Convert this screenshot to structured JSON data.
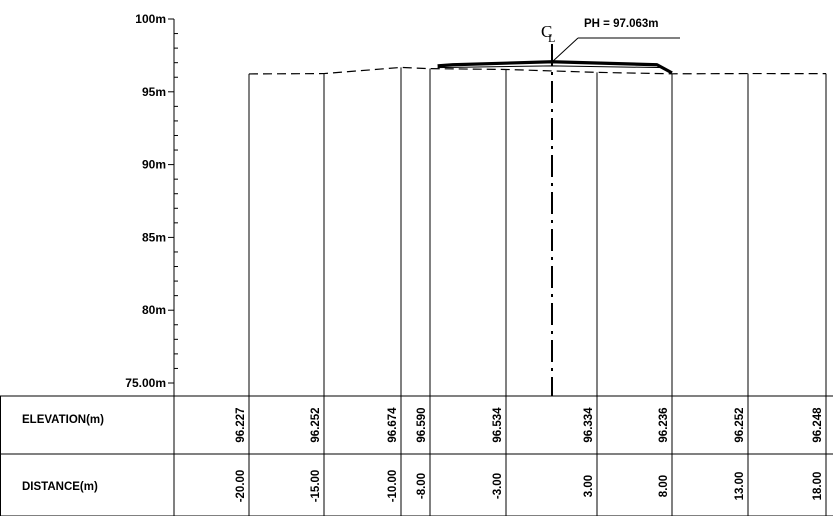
{
  "y_axis": {
    "ticks": [
      {
        "value": 100,
        "label": "100m"
      },
      {
        "value": 95,
        "label": "95m"
      },
      {
        "value": 90,
        "label": "90m"
      },
      {
        "value": 85,
        "label": "85m"
      },
      {
        "value": 80,
        "label": "80m"
      },
      {
        "value": 75,
        "label": "75.00m"
      }
    ]
  },
  "table": {
    "elevation_label": "ELEVATION(m)",
    "distance_label": "DISTANCE(m)"
  },
  "stations": [
    {
      "offset": -20,
      "distance": "-20.00",
      "elevation": "96.227"
    },
    {
      "offset": -15,
      "distance": "-15.00",
      "elevation": "96.252"
    },
    {
      "offset": -10,
      "distance": "-10.00",
      "elevation": "96.674"
    },
    {
      "offset": -8,
      "distance": "-8.00",
      "elevation": "96.590"
    },
    {
      "offset": -3,
      "distance": "-3.00",
      "elevation": "96.534"
    },
    {
      "offset": 3,
      "distance": "3.00",
      "elevation": "96.334"
    },
    {
      "offset": 8,
      "distance": "8.00",
      "elevation": "96.236"
    },
    {
      "offset": 13,
      "distance": "13.00",
      "elevation": "96.252"
    },
    {
      "offset": 18,
      "distance": "18.00",
      "elevation": "96.248"
    }
  ],
  "centerline": {
    "symbol": "CL",
    "label": "PH = 97.063m",
    "elevation": 97.063
  },
  "road_surface": [
    {
      "offset": -7.5,
      "elevation": 96.78
    },
    {
      "offset": -6.5,
      "elevation": 96.86
    },
    {
      "offset": 0,
      "elevation": 97.063
    },
    {
      "offset": 7,
      "elevation": 96.86
    },
    {
      "offset": 8,
      "elevation": 96.3
    }
  ],
  "design_line": [
    {
      "offset": -7.5,
      "elevation": 96.66
    },
    {
      "offset": 0,
      "elevation": 96.78
    },
    {
      "offset": 7.5,
      "elevation": 96.66
    }
  ]
}
